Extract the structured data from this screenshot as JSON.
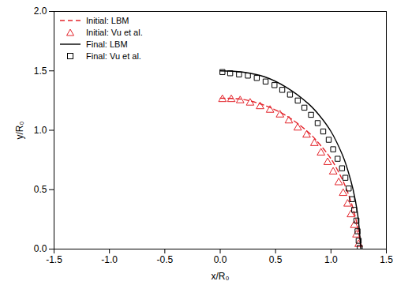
{
  "chart_data": {
    "type": "line",
    "x_label": "x/R₀",
    "y_label": "y/R₀",
    "xlim": [
      -1.5,
      1.5
    ],
    "ylim": [
      0,
      2.0
    ],
    "xticks": [
      -1.5,
      {
        "value": -1.0,
        "label": "-1.0"
      },
      -0.5,
      {
        "value": 0,
        "label": "0.0"
      },
      0.5,
      {
        "value": 1.0,
        "label": "1.0"
      },
      1.5
    ],
    "yticks": [
      {
        "value": 0,
        "label": "0.0"
      },
      0.5,
      {
        "value": 1.0,
        "label": "1.0"
      },
      1.5,
      {
        "value": 2.0,
        "label": "2.0"
      }
    ],
    "legend": "top-left",
    "series": [
      {
        "name": "Initial: LBM",
        "type": "line",
        "color": "#e3242b",
        "line_style": "dashed",
        "x": [
          0,
          0.2,
          0.4,
          0.6,
          0.8,
          0.9,
          1.0,
          1.1,
          1.15,
          1.2,
          1.24,
          1.26,
          1.27
        ],
        "values": [
          1.27,
          1.26,
          1.21,
          1.12,
          0.98,
          0.88,
          0.76,
          0.59,
          0.48,
          0.34,
          0.19,
          0.08,
          0
        ]
      },
      {
        "name": "Initial: Vu et al.",
        "type": "scatter",
        "color": "#e3242b",
        "marker": "triangle",
        "x": [
          0.02,
          0.1,
          0.18,
          0.27,
          0.36,
          0.45,
          0.54,
          0.62,
          0.7,
          0.78,
          0.85,
          0.91,
          0.97,
          1.02,
          1.07,
          1.11,
          1.15,
          1.18,
          1.21,
          1.23,
          1.25
        ],
        "values": [
          1.26,
          1.26,
          1.25,
          1.23,
          1.2,
          1.17,
          1.13,
          1.08,
          1.02,
          0.96,
          0.89,
          0.81,
          0.73,
          0.65,
          0.56,
          0.47,
          0.38,
          0.29,
          0.2,
          0.12,
          0.04
        ]
      },
      {
        "name": "Final: LBM",
        "type": "line",
        "color": "#000000",
        "line_style": "solid",
        "x": [
          0,
          0.2,
          0.4,
          0.6,
          0.8,
          0.9,
          1.0,
          1.1,
          1.15,
          1.2,
          1.24,
          1.26,
          1.27
        ],
        "values": [
          1.5,
          1.49,
          1.45,
          1.36,
          1.22,
          1.12,
          0.99,
          0.8,
          0.67,
          0.5,
          0.3,
          0.12,
          0
        ]
      },
      {
        "name": "Final: Vu et al.",
        "type": "scatter",
        "color": "#000000",
        "marker": "square",
        "x": [
          0.02,
          0.09,
          0.17,
          0.25,
          0.33,
          0.41,
          0.49,
          0.56,
          0.63,
          0.7,
          0.76,
          0.82,
          0.88,
          0.93,
          0.98,
          1.02,
          1.06,
          1.1,
          1.13,
          1.16,
          1.19,
          1.21,
          1.23,
          1.24,
          1.25,
          1.26
        ],
        "values": [
          1.49,
          1.48,
          1.47,
          1.46,
          1.44,
          1.41,
          1.38,
          1.34,
          1.3,
          1.25,
          1.19,
          1.13,
          1.06,
          0.99,
          0.92,
          0.84,
          0.76,
          0.68,
          0.6,
          0.51,
          0.42,
          0.33,
          0.24,
          0.15,
          0.07,
          0.01
        ]
      }
    ]
  }
}
